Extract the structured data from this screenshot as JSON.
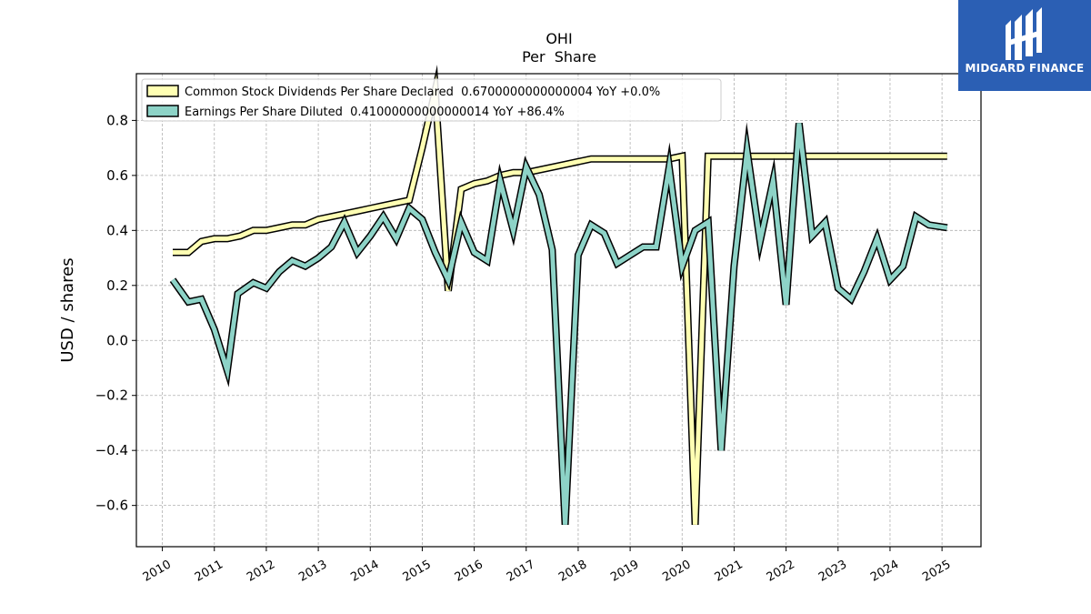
{
  "logo": {
    "text": "MIDGARD FINANCE",
    "bg_color": "#2b5fb4",
    "fg_color": "#ffffff"
  },
  "chart_data": {
    "type": "line",
    "title": "OHI",
    "subtitle": "Per  Share",
    "ylabel": "USD / shares",
    "xlabel": "",
    "xlim": [
      2009.5,
      2025.75
    ],
    "ylim": [
      -0.75,
      0.97
    ],
    "yticks": [
      -0.6,
      -0.4,
      -0.2,
      0.0,
      0.2,
      0.4,
      0.6,
      0.8
    ],
    "ytick_labels": [
      "−0.6",
      "−0.4",
      "−0.2",
      "0.0",
      "0.2",
      "0.4",
      "0.6",
      "0.8"
    ],
    "xticks": [
      2010,
      2011,
      2012,
      2013,
      2014,
      2015,
      2016,
      2017,
      2018,
      2019,
      2020,
      2021,
      2022,
      2023,
      2024,
      2025
    ],
    "xtick_labels": [
      "2010",
      "2011",
      "2012",
      "2013",
      "2014",
      "2015",
      "2016",
      "2017",
      "2018",
      "2019",
      "2020",
      "2021",
      "2022",
      "2023",
      "2024",
      "2025"
    ],
    "grid": true,
    "legend_position": "top-left",
    "series": [
      {
        "name": "Common Stock Dividends Per Share Declared",
        "legend_label": "Common Stock Dividends Per Share Declared  0.6700000000000004 YoY +0.0%",
        "color": "#ffffb3",
        "points": [
          [
            2010.2,
            0.32
          ],
          [
            2010.5,
            0.32
          ],
          [
            2010.75,
            0.36
          ],
          [
            2011.0,
            0.37
          ],
          [
            2011.25,
            0.37
          ],
          [
            2011.5,
            0.38
          ],
          [
            2011.75,
            0.4
          ],
          [
            2012.0,
            0.4
          ],
          [
            2012.25,
            0.41
          ],
          [
            2012.5,
            0.42
          ],
          [
            2012.75,
            0.42
          ],
          [
            2013.0,
            0.44
          ],
          [
            2013.25,
            0.45
          ],
          [
            2013.5,
            0.46
          ],
          [
            2013.75,
            0.47
          ],
          [
            2014.0,
            0.48
          ],
          [
            2014.25,
            0.49
          ],
          [
            2014.5,
            0.5
          ],
          [
            2014.75,
            0.51
          ],
          [
            2015.0,
            0.7
          ],
          [
            2015.25,
            0.91
          ],
          [
            2015.5,
            0.18
          ],
          [
            2015.75,
            0.55
          ],
          [
            2016.0,
            0.57
          ],
          [
            2016.25,
            0.58
          ],
          [
            2016.5,
            0.6
          ],
          [
            2016.75,
            0.61
          ],
          [
            2017.0,
            0.61
          ],
          [
            2017.25,
            0.62
          ],
          [
            2017.5,
            0.63
          ],
          [
            2017.75,
            0.64
          ],
          [
            2018.25,
            0.66
          ],
          [
            2018.75,
            0.66
          ],
          [
            2019.25,
            0.66
          ],
          [
            2019.75,
            0.66
          ],
          [
            2020.0,
            0.67
          ],
          [
            2020.25,
            -0.67
          ],
          [
            2020.5,
            0.67
          ],
          [
            2021.0,
            0.67
          ],
          [
            2022.0,
            0.67
          ],
          [
            2023.0,
            0.67
          ],
          [
            2024.0,
            0.67
          ],
          [
            2025.1,
            0.67
          ]
        ]
      },
      {
        "name": "Earnings Per Share Diluted",
        "legend_label": "Earnings Per Share Diluted  0.41000000000000014 YoY +86.4%",
        "color": "#8dd3c7",
        "points": [
          [
            2010.2,
            0.22
          ],
          [
            2010.5,
            0.14
          ],
          [
            2010.75,
            0.15
          ],
          [
            2011.0,
            0.04
          ],
          [
            2011.25,
            -0.11
          ],
          [
            2011.45,
            0.17
          ],
          [
            2011.75,
            0.21
          ],
          [
            2012.0,
            0.19
          ],
          [
            2012.25,
            0.25
          ],
          [
            2012.5,
            0.29
          ],
          [
            2012.75,
            0.27
          ],
          [
            2013.0,
            0.3
          ],
          [
            2013.25,
            0.34
          ],
          [
            2013.5,
            0.43
          ],
          [
            2013.75,
            0.32
          ],
          [
            2014.0,
            0.38
          ],
          [
            2014.25,
            0.45
          ],
          [
            2014.5,
            0.37
          ],
          [
            2014.75,
            0.48
          ],
          [
            2015.0,
            0.44
          ],
          [
            2015.25,
            0.32
          ],
          [
            2015.5,
            0.22
          ],
          [
            2015.75,
            0.43
          ],
          [
            2016.0,
            0.32
          ],
          [
            2016.25,
            0.29
          ],
          [
            2016.5,
            0.58
          ],
          [
            2016.75,
            0.4
          ],
          [
            2017.0,
            0.63
          ],
          [
            2017.25,
            0.53
          ],
          [
            2017.5,
            0.33
          ],
          [
            2017.75,
            -0.67
          ],
          [
            2018.0,
            0.31
          ],
          [
            2018.25,
            0.42
          ],
          [
            2018.5,
            0.39
          ],
          [
            2018.75,
            0.28
          ],
          [
            2019.0,
            0.31
          ],
          [
            2019.25,
            0.34
          ],
          [
            2019.5,
            0.34
          ],
          [
            2019.75,
            0.63
          ],
          [
            2020.0,
            0.27
          ],
          [
            2020.25,
            0.4
          ],
          [
            2020.5,
            0.43
          ],
          [
            2020.75,
            -0.4
          ],
          [
            2021.0,
            0.27
          ],
          [
            2021.25,
            0.69
          ],
          [
            2021.5,
            0.36
          ],
          [
            2021.75,
            0.58
          ],
          [
            2022.0,
            0.13
          ],
          [
            2022.25,
            0.79
          ],
          [
            2022.5,
            0.38
          ],
          [
            2022.75,
            0.43
          ],
          [
            2023.0,
            0.19
          ],
          [
            2023.25,
            0.15
          ],
          [
            2023.5,
            0.25
          ],
          [
            2023.75,
            0.37
          ],
          [
            2024.0,
            0.22
          ],
          [
            2024.25,
            0.27
          ],
          [
            2024.5,
            0.45
          ],
          [
            2024.75,
            0.42
          ],
          [
            2025.1,
            0.41
          ]
        ]
      }
    ]
  }
}
